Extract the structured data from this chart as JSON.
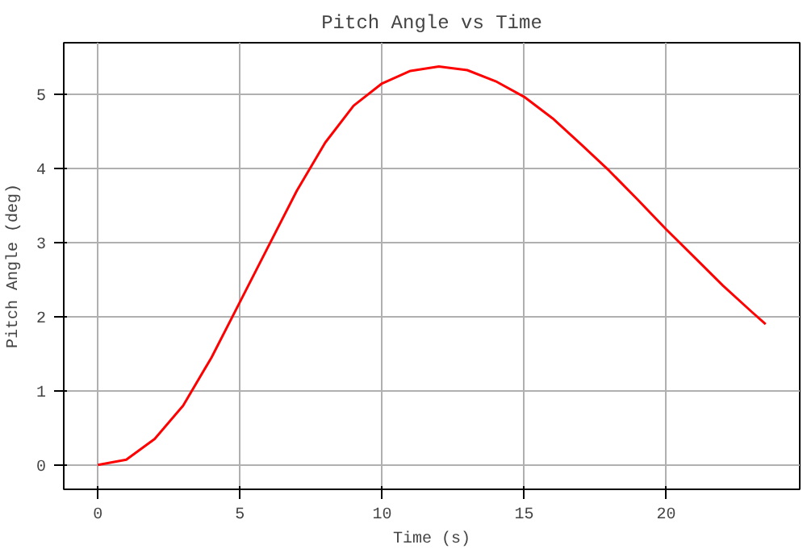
{
  "chart_data": {
    "type": "line",
    "title": "Pitch Angle vs Time",
    "xlabel": "Time (s)",
    "ylabel": "Pitch Angle (deg)",
    "x": [
      0,
      1,
      2,
      3,
      4,
      5,
      6,
      7,
      8,
      9,
      10,
      11,
      12,
      13,
      14,
      15,
      16,
      17,
      18,
      19,
      20,
      21,
      22,
      23,
      23.5
    ],
    "series": [
      {
        "color": "#ff0000",
        "values": [
          0,
          0.07,
          0.35,
          0.8,
          1.45,
          2.2,
          2.95,
          3.7,
          4.35,
          4.85,
          5.15,
          5.32,
          5.38,
          5.33,
          5.18,
          4.97,
          4.68,
          4.33,
          3.97,
          3.58,
          3.18,
          2.8,
          2.42,
          2.07,
          1.9
        ]
      }
    ],
    "xlim": [
      -1.2,
      24.7
    ],
    "ylim": [
      -0.33,
      5.7
    ],
    "xticks": [
      0,
      5,
      10,
      15,
      20
    ],
    "yticks": [
      0,
      1,
      2,
      3,
      4,
      5
    ],
    "grid": true,
    "marker": "none",
    "line_style": "solid"
  }
}
